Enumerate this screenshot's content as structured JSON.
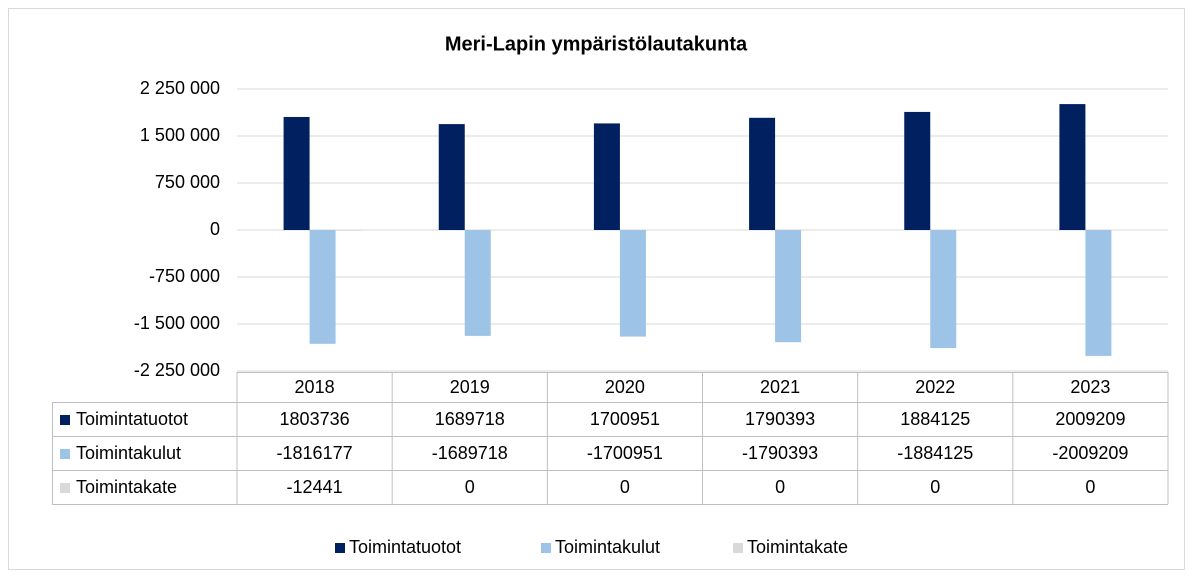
{
  "chart_data": {
    "type": "bar",
    "title": "Meri-Lapin ympäristölautakunta",
    "categories": [
      "2018",
      "2019",
      "2020",
      "2021",
      "2022",
      "2023"
    ],
    "series": [
      {
        "name": "Toimintatuotot",
        "color": "#002060",
        "values": [
          1803736,
          1689718,
          1700951,
          1790393,
          1884125,
          2009209
        ]
      },
      {
        "name": "Toimintakulut",
        "color": "#9dc3e6",
        "values": [
          -1816177,
          -1689718,
          -1700951,
          -1790393,
          -1884125,
          -2009209
        ]
      },
      {
        "name": "Toimintakate",
        "color": "#d9d9d9",
        "values": [
          -12441,
          0,
          0,
          0,
          0,
          0
        ]
      }
    ],
    "ylim": [
      -2250000,
      2250000
    ],
    "yticks": [
      {
        "value": -2250000,
        "label": "-2 250 000"
      },
      {
        "value": -1500000,
        "label": "-1 500 000"
      },
      {
        "value": -750000,
        "label": "-750 000"
      },
      0,
      {
        "value": 750000,
        "label": "750 000"
      },
      {
        "value": 1500000,
        "label": "1 500 000"
      },
      {
        "value": 2250000,
        "label": "2 250 000"
      }
    ],
    "grid": true,
    "legend": "bottom"
  }
}
